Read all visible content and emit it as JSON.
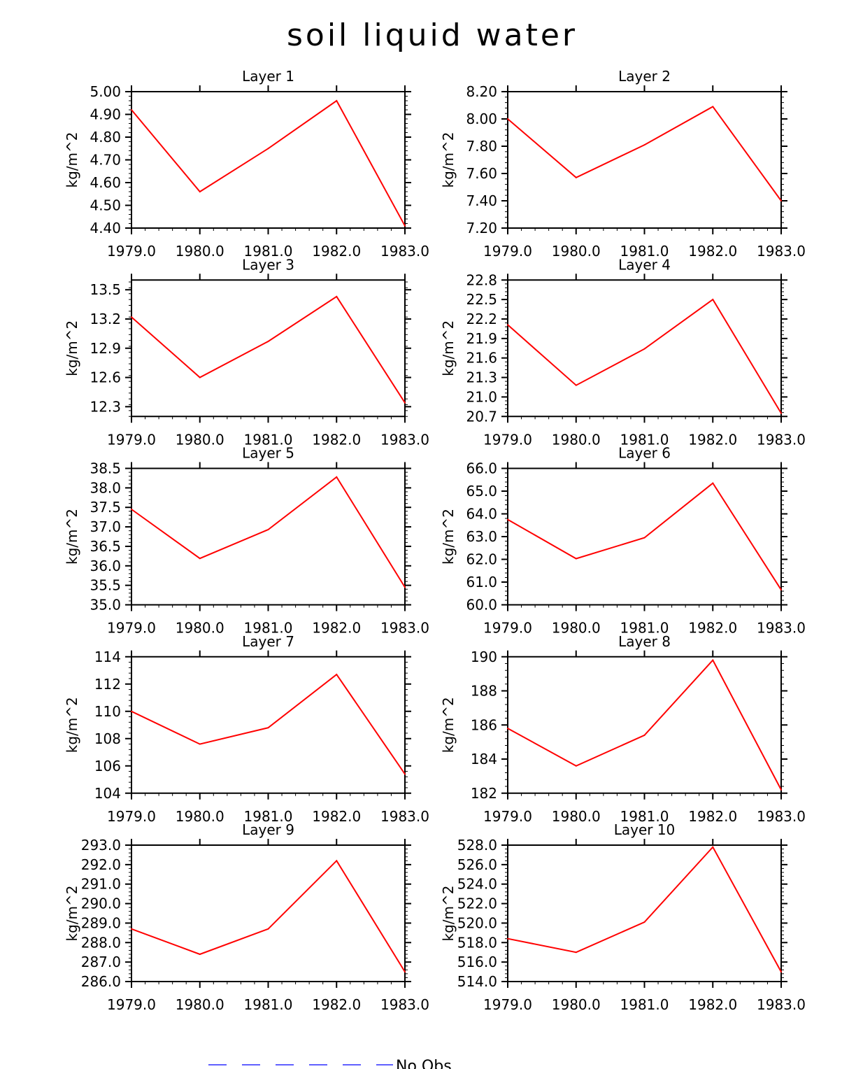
{
  "title": "soil liquid water",
  "legend": {
    "label": "No Obs",
    "color": "#6060ff"
  },
  "line_color": "#ff0000",
  "chart_data": [
    {
      "type": "line",
      "title": "Layer 1",
      "ylabel": "kg/m^2",
      "x": [
        1979,
        1980,
        1981,
        1982,
        1983
      ],
      "xticks": [
        "1979.0",
        "1980.0",
        "1981.0",
        "1982.0",
        "1983.0"
      ],
      "ylim": [
        4.4,
        5.0
      ],
      "ytick_step": 0.1,
      "ytick_decimals": 2,
      "series": [
        {
          "name": "soil liquid water",
          "values": [
            4.92,
            4.56,
            4.75,
            4.96,
            4.41
          ]
        }
      ]
    },
    {
      "type": "line",
      "title": "Layer 2",
      "ylabel": "kg/m^2",
      "x": [
        1979,
        1980,
        1981,
        1982,
        1983
      ],
      "xticks": [
        "1979.0",
        "1980.0",
        "1981.0",
        "1982.0",
        "1983.0"
      ],
      "ylim": [
        7.2,
        8.2
      ],
      "ytick_step": 0.2,
      "ytick_decimals": 2,
      "series": [
        {
          "name": "soil liquid water",
          "values": [
            8.0,
            7.57,
            7.81,
            8.09,
            7.4
          ]
        }
      ]
    },
    {
      "type": "line",
      "title": "Layer 3",
      "ylabel": "kg/m^2",
      "x": [
        1979,
        1980,
        1981,
        1982,
        1983
      ],
      "xticks": [
        "1979.0",
        "1980.0",
        "1981.0",
        "1982.0",
        "1983.0"
      ],
      "ylim": [
        12.2,
        13.6
      ],
      "ytick_start": 12.3,
      "ytick_step": 0.3,
      "ytick_decimals": 1,
      "series": [
        {
          "name": "soil liquid water",
          "values": [
            13.22,
            12.6,
            12.97,
            13.43,
            12.34
          ]
        }
      ]
    },
    {
      "type": "line",
      "title": "Layer 4",
      "ylabel": "kg/m^2",
      "x": [
        1979,
        1980,
        1981,
        1982,
        1983
      ],
      "xticks": [
        "1979.0",
        "1980.0",
        "1981.0",
        "1982.0",
        "1983.0"
      ],
      "ylim": [
        20.7,
        22.8
      ],
      "ytick_start": 20.7,
      "ytick_step": 0.3,
      "ytick_decimals": 1,
      "series": [
        {
          "name": "soil liquid water",
          "values": [
            22.11,
            21.18,
            21.74,
            22.5,
            20.75
          ]
        }
      ]
    },
    {
      "type": "line",
      "title": "Layer 5",
      "ylabel": "kg/m^2",
      "x": [
        1979,
        1980,
        1981,
        1982,
        1983
      ],
      "xticks": [
        "1979.0",
        "1980.0",
        "1981.0",
        "1982.0",
        "1983.0"
      ],
      "ylim": [
        35.0,
        38.5
      ],
      "ytick_step": 0.5,
      "ytick_decimals": 1,
      "series": [
        {
          "name": "soil liquid water",
          "values": [
            37.45,
            36.19,
            36.93,
            38.28,
            35.45
          ]
        }
      ]
    },
    {
      "type": "line",
      "title": "Layer 6",
      "ylabel": "kg/m^2",
      "x": [
        1979,
        1980,
        1981,
        1982,
        1983
      ],
      "xticks": [
        "1979.0",
        "1980.0",
        "1981.0",
        "1982.0",
        "1983.0"
      ],
      "ylim": [
        60.0,
        66.0
      ],
      "ytick_step": 1.0,
      "ytick_decimals": 1,
      "series": [
        {
          "name": "soil liquid water",
          "values": [
            63.75,
            62.03,
            62.95,
            65.35,
            60.66
          ]
        }
      ]
    },
    {
      "type": "line",
      "title": "Layer 7",
      "ylabel": "kg/m^2",
      "x": [
        1979,
        1980,
        1981,
        1982,
        1983
      ],
      "xticks": [
        "1979.0",
        "1980.0",
        "1981.0",
        "1982.0",
        "1983.0"
      ],
      "ylim": [
        104,
        114
      ],
      "ytick_step": 2,
      "ytick_decimals": 0,
      "series": [
        {
          "name": "soil liquid water",
          "values": [
            110.0,
            107.6,
            108.8,
            112.7,
            105.4
          ]
        }
      ]
    },
    {
      "type": "line",
      "title": "Layer 8",
      "ylabel": "kg/m^2",
      "x": [
        1979,
        1980,
        1981,
        1982,
        1983
      ],
      "xticks": [
        "1979.0",
        "1980.0",
        "1981.0",
        "1982.0",
        "1983.0"
      ],
      "ylim": [
        182,
        190
      ],
      "ytick_step": 2,
      "ytick_decimals": 0,
      "series": [
        {
          "name": "soil liquid water",
          "values": [
            185.8,
            183.6,
            185.4,
            189.8,
            182.2
          ]
        }
      ]
    },
    {
      "type": "line",
      "title": "Layer 9",
      "ylabel": "kg/m^2",
      "x": [
        1979,
        1980,
        1981,
        1982,
        1983
      ],
      "xticks": [
        "1979.0",
        "1980.0",
        "1981.0",
        "1982.0",
        "1983.0"
      ],
      "ylim": [
        286.0,
        293.0
      ],
      "ytick_step": 1.0,
      "ytick_decimals": 1,
      "series": [
        {
          "name": "soil liquid water",
          "values": [
            288.7,
            287.4,
            288.7,
            292.2,
            286.5
          ]
        }
      ]
    },
    {
      "type": "line",
      "title": "Layer 10",
      "ylabel": "kg/m^2",
      "x": [
        1979,
        1980,
        1981,
        1982,
        1983
      ],
      "xticks": [
        "1979.0",
        "1980.0",
        "1981.0",
        "1982.0",
        "1983.0"
      ],
      "ylim": [
        514.0,
        528.0
      ],
      "ytick_step": 2.0,
      "ytick_decimals": 1,
      "series": [
        {
          "name": "soil liquid water",
          "values": [
            518.4,
            517.0,
            520.1,
            527.8,
            515.0
          ]
        }
      ]
    }
  ]
}
